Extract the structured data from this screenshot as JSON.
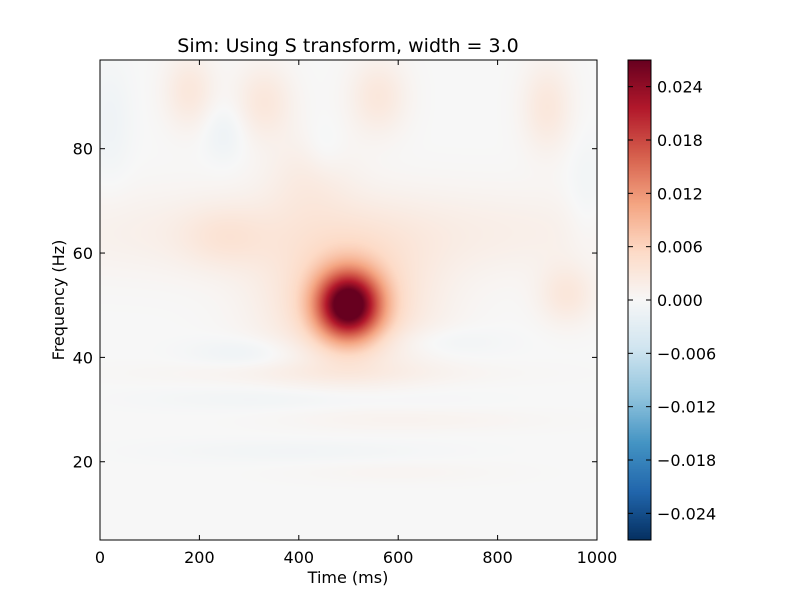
{
  "chart_data": {
    "type": "heatmap",
    "title": "Sim: Using S transform, width = 3.0",
    "xlabel": "Time (ms)",
    "ylabel": "Frequency (Hz)",
    "xlim": [
      0,
      1000
    ],
    "ylim": [
      5,
      97
    ],
    "x_ticks": [
      {
        "value": 0,
        "label": "0"
      },
      {
        "value": 200,
        "label": "200"
      },
      {
        "value": 400,
        "label": "400"
      },
      {
        "value": 600,
        "label": "600"
      },
      {
        "value": 800,
        "label": "800"
      },
      {
        "value": 1000,
        "label": "1000"
      }
    ],
    "y_ticks": [
      {
        "value": 20,
        "label": "20"
      },
      {
        "value": 40,
        "label": "40"
      },
      {
        "value": 60,
        "label": "60"
      },
      {
        "value": 80,
        "label": "80"
      }
    ],
    "colorbar": {
      "colormap": "RdBu_r",
      "vmin": -0.027,
      "vmax": 0.027,
      "ticks": [
        {
          "value": 0.024,
          "label": "0.024"
        },
        {
          "value": 0.018,
          "label": "0.018"
        },
        {
          "value": 0.012,
          "label": "0.012"
        },
        {
          "value": 0.006,
          "label": "0.006"
        },
        {
          "value": 0.0,
          "label": "0.000"
        },
        {
          "value": -0.006,
          "label": "−0.006"
        },
        {
          "value": -0.012,
          "label": "−0.012"
        },
        {
          "value": -0.018,
          "label": "−0.018"
        },
        {
          "value": -0.024,
          "label": "−0.024"
        }
      ]
    },
    "features": [
      {
        "kind": "peak",
        "time_ms": 500,
        "freq_hz": 50,
        "amplitude": 0.026,
        "sigma_time_ms": 45,
        "sigma_freq_hz": 4.5
      },
      {
        "kind": "halo",
        "time_ms": 500,
        "freq_hz": 51,
        "amplitude": 0.006,
        "sigma_time_ms": 110,
        "sigma_freq_hz": 9
      },
      {
        "kind": "band",
        "time_ms": 500,
        "freq_hz": 64,
        "amplitude": 0.002,
        "sigma_time_ms": 500,
        "sigma_freq_hz": 6
      },
      {
        "kind": "blob",
        "time_ms": 180,
        "freq_hz": 91,
        "amplitude": 0.003,
        "sigma_time_ms": 35,
        "sigma_freq_hz": 5
      },
      {
        "kind": "blob",
        "time_ms": 330,
        "freq_hz": 89,
        "amplitude": 0.003,
        "sigma_time_ms": 40,
        "sigma_freq_hz": 5
      },
      {
        "kind": "blob",
        "time_ms": 560,
        "freq_hz": 90,
        "amplitude": 0.003,
        "sigma_time_ms": 40,
        "sigma_freq_hz": 5
      },
      {
        "kind": "blob",
        "time_ms": 900,
        "freq_hz": 88,
        "amplitude": 0.003,
        "sigma_time_ms": 35,
        "sigma_freq_hz": 6
      },
      {
        "kind": "blob",
        "time_ms": 420,
        "freq_hz": 75,
        "amplitude": 0.002,
        "sigma_time_ms": 60,
        "sigma_freq_hz": 6
      },
      {
        "kind": "blob",
        "time_ms": 940,
        "freq_hz": 52,
        "amplitude": 0.003,
        "sigma_time_ms": 40,
        "sigma_freq_hz": 4
      },
      {
        "kind": "blob",
        "time_ms": 250,
        "freq_hz": 63,
        "amplitude": 0.002,
        "sigma_time_ms": 60,
        "sigma_freq_hz": 4
      },
      {
        "kind": "blob",
        "time_ms": 250,
        "freq_hz": 83,
        "amplitude": -0.0015,
        "sigma_time_ms": 30,
        "sigma_freq_hz": 4
      },
      {
        "kind": "blob",
        "time_ms": 450,
        "freq_hz": 80,
        "amplitude": -0.0012,
        "sigma_time_ms": 30,
        "sigma_freq_hz": 4
      },
      {
        "kind": "blob",
        "time_ms": 980,
        "freq_hz": 70,
        "amplitude": -0.0012,
        "sigma_time_ms": 30,
        "sigma_freq_hz": 8
      },
      {
        "kind": "blob",
        "time_ms": 20,
        "freq_hz": 85,
        "amplitude": -0.0012,
        "sigma_time_ms": 30,
        "sigma_freq_hz": 8
      },
      {
        "kind": "blob",
        "time_ms": 300,
        "freq_hz": 41,
        "amplitude": -0.0015,
        "sigma_time_ms": 80,
        "sigma_freq_hz": 2
      },
      {
        "kind": "blob",
        "time_ms": 680,
        "freq_hz": 43,
        "amplitude": -0.0012,
        "sigma_time_ms": 90,
        "sigma_freq_hz": 2
      },
      {
        "kind": "blob",
        "time_ms": 400,
        "freq_hz": 32,
        "amplitude": -0.001,
        "sigma_time_ms": 200,
        "sigma_freq_hz": 1.5
      },
      {
        "kind": "blob",
        "time_ms": 450,
        "freq_hz": 37,
        "amplitude": 0.001,
        "sigma_time_ms": 250,
        "sigma_freq_hz": 1.5
      },
      {
        "kind": "blob",
        "time_ms": 650,
        "freq_hz": 28,
        "amplitude": 0.0008,
        "sigma_time_ms": 180,
        "sigma_freq_hz": 1.5
      },
      {
        "kind": "blob",
        "time_ms": 400,
        "freq_hz": 22,
        "amplitude": -0.0008,
        "sigma_time_ms": 200,
        "sigma_freq_hz": 1.5
      },
      {
        "kind": "blob",
        "time_ms": 600,
        "freq_hz": 18,
        "amplitude": 0.0006,
        "sigma_time_ms": 150,
        "sigma_freq_hz": 1.5
      }
    ],
    "grid": false,
    "legend": "none"
  }
}
